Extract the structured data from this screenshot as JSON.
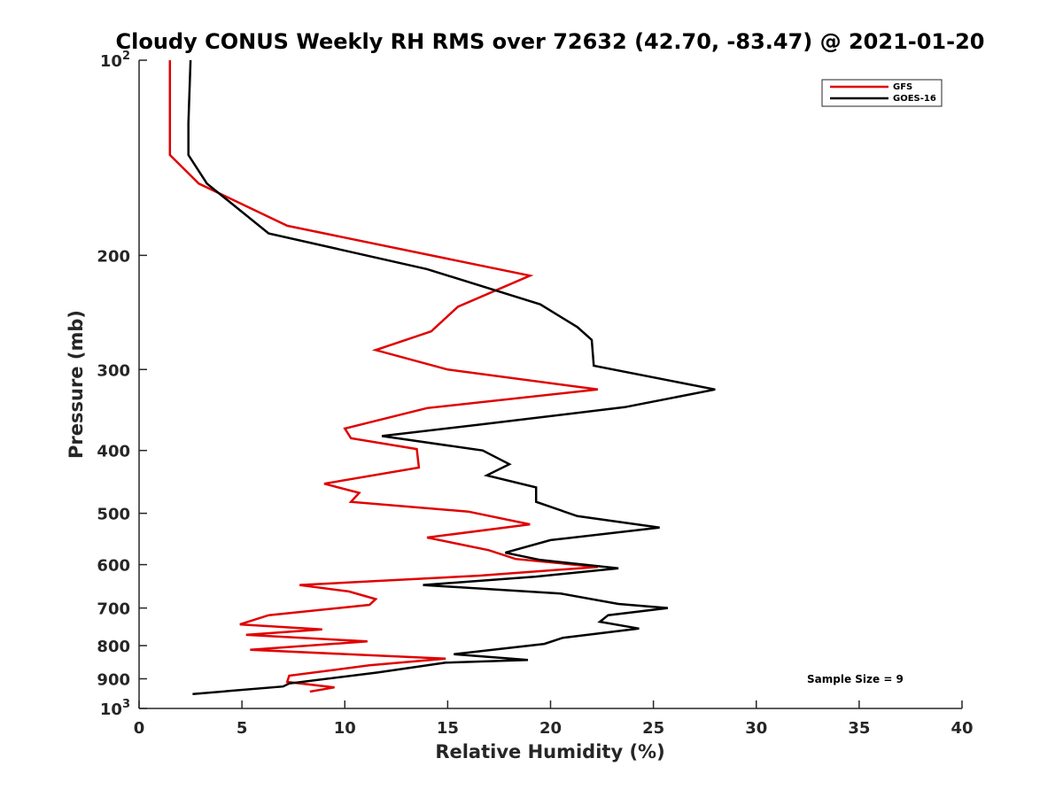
{
  "chart_data": {
    "type": "line",
    "title": "Cloudy CONUS Weekly RH RMS over 72632 (42.70, -83.47) @ 2021-01-20",
    "xlabel": "Relative Humidity (%)",
    "ylabel": "Pressure (mb)",
    "xlim": [
      0,
      40
    ],
    "ylim": [
      100,
      1000
    ],
    "yscale": "log",
    "y_reversed": true,
    "grid": false,
    "legend_position": "top-right",
    "x_ticks": [
      "0",
      "5",
      "10",
      "15",
      "20",
      "25",
      "30",
      "35",
      "40"
    ],
    "y_ticks": [
      {
        "value": 100,
        "base": "10",
        "exp": "2"
      },
      {
        "value": 200,
        "label": "200"
      },
      {
        "value": 300,
        "label": "300"
      },
      {
        "value": 400,
        "label": "400"
      },
      {
        "value": 500,
        "label": "500"
      },
      {
        "value": 600,
        "label": "600"
      },
      {
        "value": 700,
        "label": "700"
      },
      {
        "value": 800,
        "label": "800"
      },
      {
        "value": 900,
        "label": "900"
      },
      {
        "value": 1000,
        "base": "10",
        "exp": "3"
      }
    ],
    "series": [
      {
        "name": "GFS",
        "color": "#e00000",
        "points": [
          [
            1.5,
            100
          ],
          [
            1.5,
            125
          ],
          [
            1.5,
            140
          ],
          [
            2.9,
            155
          ],
          [
            7.2,
            180
          ],
          [
            14.2,
            200
          ],
          [
            19.0,
            215
          ],
          [
            15.5,
            240
          ],
          [
            14.2,
            262
          ],
          [
            11.5,
            280
          ],
          [
            15.0,
            300
          ],
          [
            22.3,
            322
          ],
          [
            14.0,
            344
          ],
          [
            10.0,
            370
          ],
          [
            10.3,
            383
          ],
          [
            13.5,
            398
          ],
          [
            13.6,
            425
          ],
          [
            9.0,
            450
          ],
          [
            10.7,
            465
          ],
          [
            10.3,
            480
          ],
          [
            16.0,
            497
          ],
          [
            19.0,
            520
          ],
          [
            14.0,
            545
          ],
          [
            17.0,
            570
          ],
          [
            18.3,
            588
          ],
          [
            22.3,
            605
          ],
          [
            16.5,
            624
          ],
          [
            7.8,
            645
          ],
          [
            10.2,
            660
          ],
          [
            11.5,
            678
          ],
          [
            11.2,
            692
          ],
          [
            6.3,
            718
          ],
          [
            4.9,
            742
          ],
          [
            8.9,
            755
          ],
          [
            5.2,
            770
          ],
          [
            11.1,
            788
          ],
          [
            5.4,
            812
          ],
          [
            14.9,
            838
          ],
          [
            11.2,
            858
          ],
          [
            7.3,
            890
          ],
          [
            7.2,
            910
          ],
          [
            9.5,
            928
          ],
          [
            8.3,
            942
          ]
        ]
      },
      {
        "name": "GOES-16",
        "color": "#000000",
        "points": [
          [
            2.5,
            100
          ],
          [
            2.4,
            125
          ],
          [
            2.4,
            140
          ],
          [
            3.3,
            155
          ],
          [
            6.3,
            185
          ],
          [
            14.0,
            210
          ],
          [
            19.5,
            238
          ],
          [
            21.3,
            258
          ],
          [
            22.0,
            270
          ],
          [
            22.1,
            296
          ],
          [
            28.0,
            322
          ],
          [
            23.6,
            343
          ],
          [
            16.5,
            365
          ],
          [
            11.8,
            380
          ],
          [
            16.7,
            400
          ],
          [
            18.0,
            420
          ],
          [
            16.9,
            437
          ],
          [
            19.3,
            456
          ],
          [
            19.3,
            480
          ],
          [
            21.3,
            505
          ],
          [
            25.3,
            526
          ],
          [
            20.0,
            550
          ],
          [
            17.8,
            575
          ],
          [
            19.5,
            590
          ],
          [
            23.3,
            608
          ],
          [
            19.3,
            626
          ],
          [
            13.8,
            645
          ],
          [
            20.5,
            665
          ],
          [
            23.3,
            690
          ],
          [
            25.7,
            700
          ],
          [
            22.8,
            718
          ],
          [
            22.4,
            735
          ],
          [
            24.3,
            753
          ],
          [
            20.6,
            778
          ],
          [
            19.7,
            795
          ],
          [
            15.3,
            825
          ],
          [
            18.9,
            842
          ],
          [
            14.9,
            850
          ],
          [
            11.6,
            880
          ],
          [
            7.3,
            915
          ],
          [
            7.0,
            925
          ],
          [
            2.6,
            950
          ]
        ]
      }
    ],
    "annotation": "Sample Size = 9"
  },
  "colors": {
    "axis": "#262626",
    "gfs": "#e00000",
    "goes": "#000000"
  }
}
